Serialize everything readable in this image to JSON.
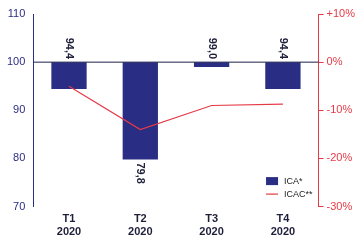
{
  "chart_data": {
    "type": "bar",
    "categories": [
      "T1 2020",
      "T2 2020",
      "T3 2020",
      "T4 2020"
    ],
    "series": [
      {
        "name": "ICA*",
        "type": "bar",
        "color": "#2a2d84",
        "base": 100,
        "values": [
          94.4,
          79.8,
          99.0,
          94.4
        ],
        "value_labels": [
          "94,4",
          "79,8",
          "99,0",
          "94,4"
        ]
      },
      {
        "name": "ICAC**",
        "type": "line",
        "axis": "y2",
        "color": "#e63a46",
        "values": [
          -5,
          -14,
          -9,
          -8.7
        ]
      }
    ],
    "ylim": [
      70,
      110
    ],
    "yticks": [
      70,
      80,
      90,
      100,
      110
    ],
    "y2lim": [
      -30,
      10
    ],
    "y2ticks": [
      {
        "value": -30,
        "label": "-30%"
      },
      {
        "value": -20,
        "label": "-20%"
      },
      {
        "value": -10,
        "label": "-10%"
      },
      {
        "value": 0,
        "label": "0%"
      },
      {
        "value": 10,
        "label": "+10%"
      }
    ],
    "grid": false,
    "data_labels": true,
    "legend": "lower right"
  }
}
